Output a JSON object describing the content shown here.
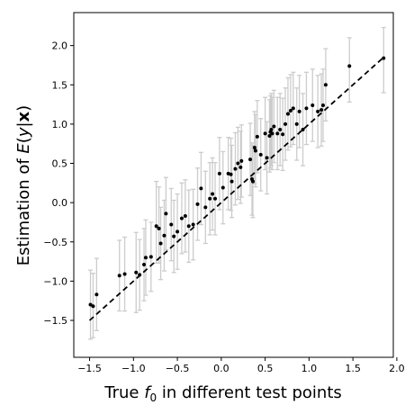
{
  "chart_data": {
    "type": "scatter",
    "xlabel": {
      "pre": "True ",
      "sym": "f",
      "sub": "0",
      "post": " in different test points"
    },
    "ylabel": {
      "pre": "Estimation of ",
      "sym": "E",
      "mid": "(",
      "y": "y",
      "bar": "|",
      "x": "x",
      "post": ")"
    },
    "xlim": [
      -1.68,
      1.96
    ],
    "ylim": [
      -1.97,
      2.42
    ],
    "x_ticks": [
      -1.5,
      -1.0,
      -0.5,
      0.0,
      0.5,
      1.0,
      1.5,
      2.0
    ],
    "y_ticks": [
      -1.5,
      -1.0,
      -0.5,
      0.0,
      0.5,
      1.0,
      1.5,
      2.0
    ],
    "tick_format": 1,
    "grid": false,
    "reference_line": {
      "style": "dashed",
      "color": "#000000",
      "from": [
        -1.5,
        -1.5
      ],
      "to": [
        1.85,
        1.85
      ]
    },
    "marker_color": "#000000",
    "errorbar_color": "#cccccc",
    "points": [
      {
        "x": -1.49,
        "y": -1.3,
        "lo": -1.74,
        "hi": -0.86
      },
      {
        "x": -1.46,
        "y": -1.32,
        "lo": -1.72,
        "hi": -0.9
      },
      {
        "x": -1.42,
        "y": -1.17,
        "lo": -1.63,
        "hi": -0.71
      },
      {
        "x": -1.16,
        "y": -0.93,
        "lo": -1.38,
        "hi": -0.48
      },
      {
        "x": -1.1,
        "y": -0.91,
        "lo": -1.38,
        "hi": -0.44
      },
      {
        "x": -0.97,
        "y": -0.89,
        "lo": -1.4,
        "hi": -0.38
      },
      {
        "x": -0.93,
        "y": -0.92,
        "lo": -1.37,
        "hi": -0.47
      },
      {
        "x": -0.88,
        "y": -0.79,
        "lo": -1.25,
        "hi": -0.33
      },
      {
        "x": -0.86,
        "y": -0.7,
        "lo": -1.18,
        "hi": -0.22
      },
      {
        "x": -0.8,
        "y": -0.69,
        "lo": -1.13,
        "hi": -0.25
      },
      {
        "x": -0.74,
        "y": -0.3,
        "lo": -0.77,
        "hi": 0.27
      },
      {
        "x": -0.71,
        "y": -0.33,
        "lo": -0.77,
        "hi": 0.2
      },
      {
        "x": -0.69,
        "y": -0.52,
        "lo": -0.98,
        "hi": -0.06
      },
      {
        "x": -0.65,
        "y": -0.42,
        "lo": -0.87,
        "hi": 0.03
      },
      {
        "x": -0.63,
        "y": -0.14,
        "lo": -0.6,
        "hi": 0.32
      },
      {
        "x": -0.57,
        "y": -0.28,
        "lo": -0.74,
        "hi": 0.18
      },
      {
        "x": -0.54,
        "y": -0.43,
        "lo": -0.89,
        "hi": 0.03
      },
      {
        "x": -0.5,
        "y": -0.37,
        "lo": -0.85,
        "hi": 0.11
      },
      {
        "x": -0.45,
        "y": -0.2,
        "lo": -0.65,
        "hi": 0.25
      },
      {
        "x": -0.41,
        "y": -0.17,
        "lo": -0.63,
        "hi": 0.29
      },
      {
        "x": -0.37,
        "y": -0.3,
        "lo": -0.76,
        "hi": 0.16
      },
      {
        "x": -0.32,
        "y": -0.28,
        "lo": -0.73,
        "hi": 0.17
      },
      {
        "x": -0.27,
        "y": -0.02,
        "lo": -0.48,
        "hi": 0.44
      },
      {
        "x": -0.23,
        "y": 0.18,
        "lo": -0.28,
        "hi": 0.64
      },
      {
        "x": -0.18,
        "y": -0.06,
        "lo": -0.52,
        "hi": 0.4
      },
      {
        "x": -0.13,
        "y": 0.05,
        "lo": -0.41,
        "hi": 0.51
      },
      {
        "x": -0.1,
        "y": 0.11,
        "lo": -0.35,
        "hi": 0.57
      },
      {
        "x": -0.07,
        "y": 0.05,
        "lo": -0.41,
        "hi": 0.51
      },
      {
        "x": -0.02,
        "y": 0.37,
        "lo": -0.09,
        "hi": 0.83
      },
      {
        "x": 0.02,
        "y": 0.19,
        "lo": -0.27,
        "hi": 0.65
      },
      {
        "x": 0.08,
        "y": 0.37,
        "lo": -0.09,
        "hi": 0.83
      },
      {
        "x": 0.11,
        "y": 0.36,
        "lo": -0.1,
        "hi": 0.82
      },
      {
        "x": 0.12,
        "y": 0.27,
        "lo": -0.19,
        "hi": 0.73
      },
      {
        "x": 0.16,
        "y": 0.43,
        "lo": -0.03,
        "hi": 0.89
      },
      {
        "x": 0.19,
        "y": 0.5,
        "lo": 0.04,
        "hi": 0.96
      },
      {
        "x": 0.22,
        "y": 0.45,
        "lo": -0.01,
        "hi": 0.91
      },
      {
        "x": 0.23,
        "y": 0.53,
        "lo": 0.07,
        "hi": 0.99
      },
      {
        "x": 0.33,
        "y": 0.55,
        "lo": 0.09,
        "hi": 1.01
      },
      {
        "x": 0.35,
        "y": 0.3,
        "lo": -0.16,
        "hi": 0.76
      },
      {
        "x": 0.36,
        "y": 0.27,
        "lo": -0.19,
        "hi": 0.73
      },
      {
        "x": 0.38,
        "y": 0.7,
        "lo": 0.24,
        "hi": 1.16
      },
      {
        "x": 0.39,
        "y": 0.66,
        "lo": 0.2,
        "hi": 1.12
      },
      {
        "x": 0.41,
        "y": 0.84,
        "lo": 0.38,
        "hi": 1.3
      },
      {
        "x": 0.45,
        "y": 0.61,
        "lo": 0.15,
        "hi": 1.07
      },
      {
        "x": 0.5,
        "y": 0.88,
        "lo": 0.42,
        "hi": 1.34
      },
      {
        "x": 0.52,
        "y": 0.57,
        "lo": 0.11,
        "hi": 1.03
      },
      {
        "x": 0.55,
        "y": 0.85,
        "lo": 0.39,
        "hi": 1.31
      },
      {
        "x": 0.56,
        "y": 0.9,
        "lo": 0.44,
        "hi": 1.36
      },
      {
        "x": 0.57,
        "y": 0.93,
        "lo": 0.47,
        "hi": 1.39
      },
      {
        "x": 0.58,
        "y": 0.88,
        "lo": 0.42,
        "hi": 1.34
      },
      {
        "x": 0.6,
        "y": 0.97,
        "lo": 0.51,
        "hi": 1.43
      },
      {
        "x": 0.64,
        "y": 0.88,
        "lo": 0.42,
        "hi": 1.34
      },
      {
        "x": 0.67,
        "y": 0.93,
        "lo": 0.47,
        "hi": 1.39
      },
      {
        "x": 0.7,
        "y": 0.87,
        "lo": 0.41,
        "hi": 1.33
      },
      {
        "x": 0.73,
        "y": 1.0,
        "lo": 0.54,
        "hi": 1.46
      },
      {
        "x": 0.76,
        "y": 1.13,
        "lo": 0.67,
        "hi": 1.59
      },
      {
        "x": 0.79,
        "y": 1.17,
        "lo": 0.71,
        "hi": 1.63
      },
      {
        "x": 0.82,
        "y": 1.2,
        "lo": 0.74,
        "hi": 1.66
      },
      {
        "x": 0.86,
        "y": 1.0,
        "lo": 0.54,
        "hi": 1.46
      },
      {
        "x": 0.89,
        "y": 1.16,
        "lo": 0.7,
        "hi": 1.62
      },
      {
        "x": 0.93,
        "y": 0.93,
        "lo": 0.47,
        "hi": 1.39
      },
      {
        "x": 0.97,
        "y": 1.2,
        "lo": 0.74,
        "hi": 1.66
      },
      {
        "x": 1.04,
        "y": 1.24,
        "lo": 0.78,
        "hi": 1.7
      },
      {
        "x": 1.1,
        "y": 1.16,
        "lo": 0.7,
        "hi": 1.62
      },
      {
        "x": 1.14,
        "y": 1.18,
        "lo": 0.72,
        "hi": 1.64
      },
      {
        "x": 1.16,
        "y": 1.24,
        "lo": 0.78,
        "hi": 1.7
      },
      {
        "x": 1.19,
        "y": 1.5,
        "lo": 1.04,
        "hi": 1.96
      },
      {
        "x": 1.46,
        "y": 1.74,
        "lo": 1.28,
        "hi": 2.1
      },
      {
        "x": 1.85,
        "y": 1.84,
        "lo": 1.4,
        "hi": 2.23
      }
    ]
  }
}
